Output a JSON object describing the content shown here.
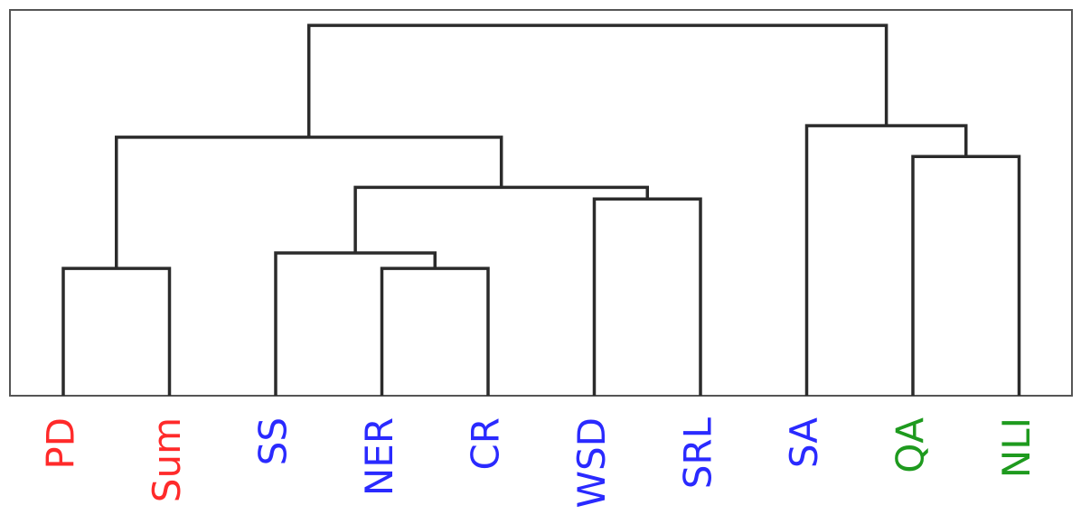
{
  "chart_data": {
    "type": "dendrogram",
    "grid": false,
    "leaves": [
      {
        "label": "PD",
        "color": "#ff2a2a"
      },
      {
        "label": "Sum",
        "color": "#ff2a2a"
      },
      {
        "label": "SS",
        "color": "#2a2aff"
      },
      {
        "label": "NER",
        "color": "#2a2aff"
      },
      {
        "label": "CR",
        "color": "#2a2aff"
      },
      {
        "label": "WSD",
        "color": "#2a2aff"
      },
      {
        "label": "SRL",
        "color": "#2a2aff"
      },
      {
        "label": "SA",
        "color": "#2a2aff"
      },
      {
        "label": "QA",
        "color": "#1e9a1e"
      },
      {
        "label": "NLI",
        "color": "#1e9a1e"
      }
    ],
    "merges": [
      {
        "id": "n1",
        "left": "L0",
        "right": "L1",
        "height": 0.33
      },
      {
        "id": "n2",
        "left": "L3",
        "right": "L4",
        "height": 0.33
      },
      {
        "id": "n3",
        "left": "L2",
        "right": "n2",
        "height": 0.37
      },
      {
        "id": "n4",
        "left": "L5",
        "right": "L6",
        "height": 0.51
      },
      {
        "id": "n5",
        "left": "n3",
        "right": "n4",
        "height": 0.54
      },
      {
        "id": "n6",
        "left": "n1",
        "right": "n5",
        "height": 0.67
      },
      {
        "id": "n7",
        "left": "L8",
        "right": "L9",
        "height": 0.62
      },
      {
        "id": "n8",
        "left": "L7",
        "right": "n7",
        "height": 0.7
      },
      {
        "id": "n9",
        "left": "n6",
        "right": "n8",
        "height": 0.96
      }
    ],
    "ylim": [
      0,
      1
    ]
  }
}
